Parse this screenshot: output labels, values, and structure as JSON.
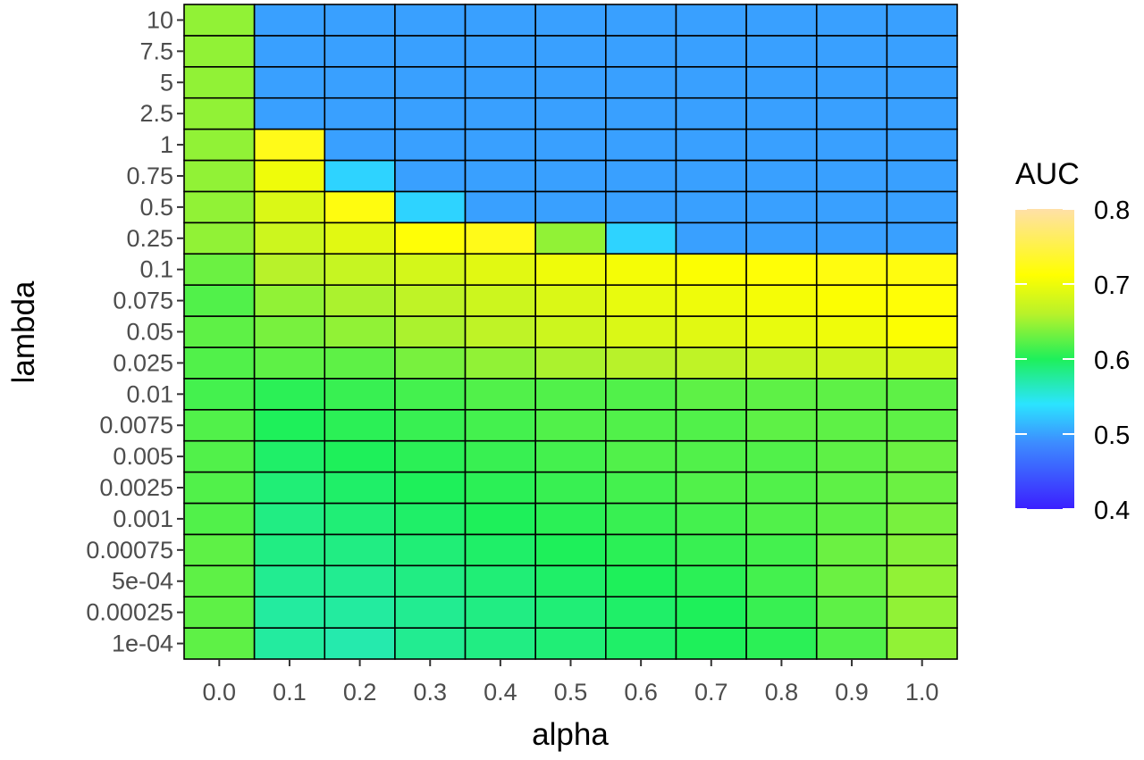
{
  "chart_data": {
    "type": "heatmap",
    "xlabel": "alpha",
    "ylabel": "lambda",
    "x": [
      "0.0",
      "0.1",
      "0.2",
      "0.3",
      "0.4",
      "0.5",
      "0.6",
      "0.7",
      "0.8",
      "0.9",
      "1.0"
    ],
    "y": [
      "1e-04",
      "0.00025",
      "5e-04",
      "0.00075",
      "0.001",
      "0.0025",
      "0.005",
      "0.0075",
      "0.01",
      "0.025",
      "0.05",
      "0.075",
      "0.1",
      "0.25",
      "0.5",
      "0.75",
      "1",
      "2.5",
      "5",
      "7.5",
      "10"
    ],
    "values": [
      [
        0.625,
        0.575,
        0.57,
        0.58,
        0.585,
        0.59,
        0.595,
        0.6,
        0.605,
        0.62,
        0.645
      ],
      [
        0.625,
        0.575,
        0.575,
        0.58,
        0.585,
        0.59,
        0.595,
        0.6,
        0.61,
        0.625,
        0.645
      ],
      [
        0.625,
        0.58,
        0.58,
        0.585,
        0.59,
        0.595,
        0.6,
        0.605,
        0.615,
        0.63,
        0.645
      ],
      [
        0.625,
        0.585,
        0.585,
        0.59,
        0.595,
        0.6,
        0.605,
        0.61,
        0.615,
        0.63,
        0.64
      ],
      [
        0.62,
        0.585,
        0.59,
        0.595,
        0.6,
        0.605,
        0.61,
        0.615,
        0.62,
        0.625,
        0.635
      ],
      [
        0.62,
        0.59,
        0.595,
        0.6,
        0.605,
        0.61,
        0.615,
        0.62,
        0.62,
        0.625,
        0.63
      ],
      [
        0.62,
        0.595,
        0.6,
        0.605,
        0.61,
        0.615,
        0.62,
        0.62,
        0.62,
        0.625,
        0.63
      ],
      [
        0.62,
        0.6,
        0.605,
        0.61,
        0.615,
        0.62,
        0.62,
        0.62,
        0.625,
        0.625,
        0.625
      ],
      [
        0.615,
        0.605,
        0.61,
        0.615,
        0.62,
        0.62,
        0.62,
        0.625,
        0.625,
        0.625,
        0.625
      ],
      [
        0.62,
        0.625,
        0.625,
        0.635,
        0.645,
        0.655,
        0.66,
        0.665,
        0.67,
        0.675,
        0.68
      ],
      [
        0.625,
        0.635,
        0.645,
        0.655,
        0.665,
        0.675,
        0.685,
        0.69,
        0.695,
        0.7,
        0.71
      ],
      [
        0.62,
        0.645,
        0.655,
        0.665,
        0.675,
        0.685,
        0.695,
        0.7,
        0.705,
        0.71,
        0.715
      ],
      [
        0.63,
        0.66,
        0.67,
        0.68,
        0.69,
        0.7,
        0.705,
        0.71,
        0.715,
        0.72,
        0.72
      ],
      [
        0.645,
        0.675,
        0.69,
        0.715,
        0.725,
        0.645,
        0.53,
        0.5,
        0.5,
        0.5,
        0.5
      ],
      [
        0.645,
        0.685,
        0.72,
        0.53,
        0.5,
        0.5,
        0.5,
        0.5,
        0.5,
        0.5,
        0.5
      ],
      [
        0.645,
        0.7,
        0.53,
        0.5,
        0.5,
        0.5,
        0.5,
        0.5,
        0.5,
        0.5,
        0.5
      ],
      [
        0.645,
        0.725,
        0.5,
        0.5,
        0.5,
        0.5,
        0.5,
        0.5,
        0.5,
        0.5,
        0.5
      ],
      [
        0.645,
        0.5,
        0.5,
        0.5,
        0.5,
        0.5,
        0.5,
        0.5,
        0.5,
        0.5,
        0.5
      ],
      [
        0.645,
        0.5,
        0.5,
        0.5,
        0.5,
        0.5,
        0.5,
        0.5,
        0.5,
        0.5,
        0.5
      ],
      [
        0.645,
        0.5,
        0.5,
        0.5,
        0.5,
        0.5,
        0.5,
        0.5,
        0.5,
        0.5,
        0.5
      ],
      [
        0.645,
        0.5,
        0.5,
        0.5,
        0.5,
        0.5,
        0.5,
        0.5,
        0.5,
        0.5,
        0.5
      ]
    ],
    "legend": {
      "title": "AUC",
      "placement": "right",
      "range": [
        0.4,
        0.8
      ],
      "ticks": [
        "0.4",
        "0.5",
        "0.6",
        "0.7",
        "0.8"
      ],
      "colors": [
        "#3b1fff",
        "#3d8cff",
        "#2be4ff",
        "#1ef05a",
        "#b8f22a",
        "#ffff00",
        "#ffe0a8"
      ]
    },
    "cell_border_color": "#000000",
    "grid": false
  }
}
